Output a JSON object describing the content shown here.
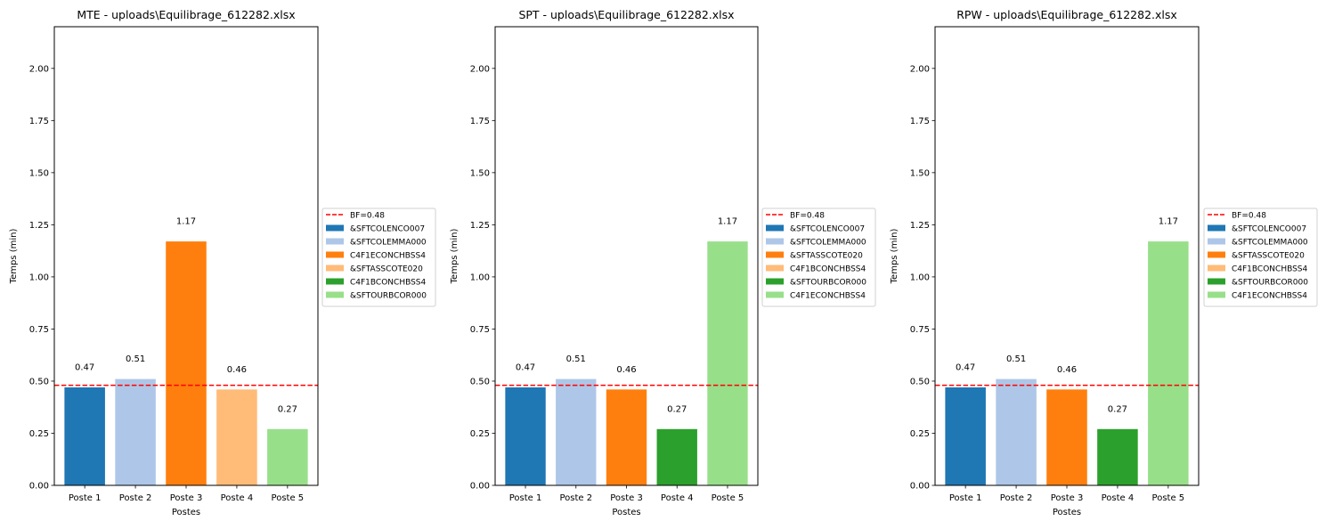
{
  "chart_data": [
    {
      "type": "bar",
      "title": "MTE - uploads\\Equilibrage_612282.xlsx",
      "xlabel": "Postes",
      "ylabel": "Temps (min)",
      "ylim": [
        0,
        2.2
      ],
      "yticks": [
        0.0,
        0.25,
        0.5,
        0.75,
        1.0,
        1.25,
        1.5,
        1.75,
        2.0
      ],
      "ytick_labels": [
        "0.00",
        "0.25",
        "0.50",
        "0.75",
        "1.00",
        "1.25",
        "1.50",
        "1.75",
        "2.00"
      ],
      "categories": [
        "Poste 1",
        "Poste 2",
        "Poste 3",
        "Poste 4",
        "Poste 5"
      ],
      "values": [
        0.47,
        0.51,
        1.17,
        0.46,
        0.27
      ],
      "value_labels": [
        "0.47",
        "0.51",
        "1.17",
        "0.46",
        "0.27"
      ],
      "bar_series": [
        "&SFTCOLENCO007",
        "&SFTCOLEMMA000",
        "C4F1ECONCHBSS4",
        "&SFTASSCOTE020",
        "&SFTOURBCOR000"
      ],
      "bar_colors": [
        "#1f77b4",
        "#aec7e8",
        "#ff7f0e",
        "#ffbb78",
        "#98df8a"
      ],
      "reference_line": {
        "label": "BF=0.48",
        "value": 0.48,
        "color": "#ff0000",
        "style": "dashed"
      },
      "legend": {
        "placement": "outside-right",
        "entries": [
          {
            "label": "BF=0.48",
            "kind": "line",
            "color": "#ff0000"
          },
          {
            "label": "&SFTCOLENCO007",
            "kind": "patch",
            "color": "#1f77b4"
          },
          {
            "label": "&SFTCOLEMMA000",
            "kind": "patch",
            "color": "#aec7e8"
          },
          {
            "label": "C4F1ECONCHBSS4",
            "kind": "patch",
            "color": "#ff7f0e"
          },
          {
            "label": "&SFTASSCOTE020",
            "kind": "patch",
            "color": "#ffbb78"
          },
          {
            "label": "C4F1BCONCHBSS4",
            "kind": "patch",
            "color": "#2ca02c"
          },
          {
            "label": "&SFTOURBCOR000",
            "kind": "patch",
            "color": "#98df8a"
          }
        ]
      },
      "grid": false
    },
    {
      "type": "bar",
      "title": "SPT - uploads\\Equilibrage_612282.xlsx",
      "xlabel": "Postes",
      "ylabel": "Temps (min)",
      "ylim": [
        0,
        2.2
      ],
      "yticks": [
        0.0,
        0.25,
        0.5,
        0.75,
        1.0,
        1.25,
        1.5,
        1.75,
        2.0
      ],
      "ytick_labels": [
        "0.00",
        "0.25",
        "0.50",
        "0.75",
        "1.00",
        "1.25",
        "1.50",
        "1.75",
        "2.00"
      ],
      "categories": [
        "Poste 1",
        "Poste 2",
        "Poste 3",
        "Poste 4",
        "Poste 5"
      ],
      "values": [
        0.47,
        0.51,
        0.46,
        0.27,
        1.17
      ],
      "value_labels": [
        "0.47",
        "0.51",
        "0.46",
        "0.27",
        "1.17"
      ],
      "bar_series": [
        "&SFTCOLENCO007",
        "&SFTCOLEMMA000",
        "&SFTASSCOTE020",
        "&SFTOURBCOR000",
        "C4F1ECONCHBSS4"
      ],
      "bar_colors": [
        "#1f77b4",
        "#aec7e8",
        "#ff7f0e",
        "#2ca02c",
        "#98df8a"
      ],
      "reference_line": {
        "label": "BF=0.48",
        "value": 0.48,
        "color": "#ff0000",
        "style": "dashed"
      },
      "legend": {
        "placement": "outside-right",
        "entries": [
          {
            "label": "BF=0.48",
            "kind": "line",
            "color": "#ff0000"
          },
          {
            "label": "&SFTCOLENCO007",
            "kind": "patch",
            "color": "#1f77b4"
          },
          {
            "label": "&SFTCOLEMMA000",
            "kind": "patch",
            "color": "#aec7e8"
          },
          {
            "label": "&SFTASSCOTE020",
            "kind": "patch",
            "color": "#ff7f0e"
          },
          {
            "label": "C4F1BCONCHBSS4",
            "kind": "patch",
            "color": "#ffbb78"
          },
          {
            "label": "&SFTOURBCOR000",
            "kind": "patch",
            "color": "#2ca02c"
          },
          {
            "label": "C4F1ECONCHBSS4",
            "kind": "patch",
            "color": "#98df8a"
          }
        ]
      },
      "grid": false
    },
    {
      "type": "bar",
      "title": "RPW - uploads\\Equilibrage_612282.xlsx",
      "xlabel": "Postes",
      "ylabel": "Temps (min)",
      "ylim": [
        0,
        2.2
      ],
      "yticks": [
        0.0,
        0.25,
        0.5,
        0.75,
        1.0,
        1.25,
        1.5,
        1.75,
        2.0
      ],
      "ytick_labels": [
        "0.00",
        "0.25",
        "0.50",
        "0.75",
        "1.00",
        "1.25",
        "1.50",
        "1.75",
        "2.00"
      ],
      "categories": [
        "Poste 1",
        "Poste 2",
        "Poste 3",
        "Poste 4",
        "Poste 5"
      ],
      "values": [
        0.47,
        0.51,
        0.46,
        0.27,
        1.17
      ],
      "value_labels": [
        "0.47",
        "0.51",
        "0.46",
        "0.27",
        "1.17"
      ],
      "bar_series": [
        "&SFTCOLENCO007",
        "&SFTCOLEMMA000",
        "&SFTASSCOTE020",
        "&SFTOURBCOR000",
        "C4F1ECONCHBSS4"
      ],
      "bar_colors": [
        "#1f77b4",
        "#aec7e8",
        "#ff7f0e",
        "#2ca02c",
        "#98df8a"
      ],
      "reference_line": {
        "label": "BF=0.48",
        "value": 0.48,
        "color": "#ff0000",
        "style": "dashed"
      },
      "legend": {
        "placement": "outside-right",
        "entries": [
          {
            "label": "BF=0.48",
            "kind": "line",
            "color": "#ff0000"
          },
          {
            "label": "&SFTCOLENCO007",
            "kind": "patch",
            "color": "#1f77b4"
          },
          {
            "label": "&SFTCOLEMMA000",
            "kind": "patch",
            "color": "#aec7e8"
          },
          {
            "label": "&SFTASSCOTE020",
            "kind": "patch",
            "color": "#ff7f0e"
          },
          {
            "label": "C4F1BCONCHBSS4",
            "kind": "patch",
            "color": "#ffbb78"
          },
          {
            "label": "&SFTOURBCOR000",
            "kind": "patch",
            "color": "#2ca02c"
          },
          {
            "label": "C4F1ECONCHBSS4",
            "kind": "patch",
            "color": "#98df8a"
          }
        ]
      },
      "grid": false
    }
  ]
}
